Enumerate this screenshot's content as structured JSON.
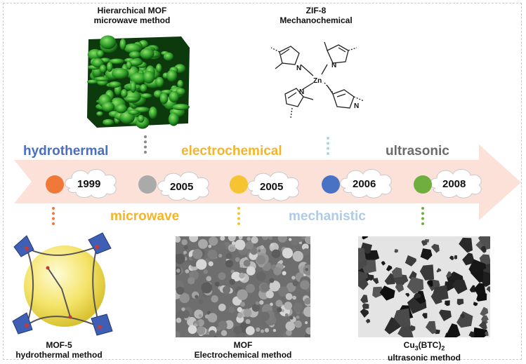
{
  "top_items": [
    {
      "line1": "Hierarchical MOF",
      "line2": "microwave method"
    },
    {
      "line1": "ZIF-8",
      "line2": "Mechanochemical"
    }
  ],
  "bottom_items": [
    {
      "line1": "MOF-5",
      "line2": "hydrothermal method"
    },
    {
      "line1": "MOF",
      "line2": "Electrochemical method"
    },
    {
      "line1": "Cu3(BTC)2",
      "line2": "ultrasonic method"
    }
  ],
  "molecule_labels": {
    "zn": "Zn",
    "n": "N"
  },
  "timeline": [
    {
      "year": "1999",
      "method": "hydrothermal",
      "method_color": "#4a6fc2",
      "dot_color": "#f07838"
    },
    {
      "year": "2005",
      "method": "microwave",
      "method_color": "#f5b52a",
      "dot_color": "#aaaaaa"
    },
    {
      "year": "2005",
      "method": "electrochemical",
      "method_color": "#f5b52a",
      "dot_color": "#f5c430"
    },
    {
      "year": "2006",
      "method": "mechanistic",
      "method_color": "#b2cbe5",
      "dot_color": "#4a72c4"
    },
    {
      "year": "2008",
      "method": "ultrasonic",
      "method_color": "#6b6b6b",
      "dot_color": "#6faf3f"
    }
  ],
  "colors": {
    "arrow": "#fbe1d8",
    "cloud": "#ffffff",
    "cloud_stroke": "#c9c9c9"
  }
}
